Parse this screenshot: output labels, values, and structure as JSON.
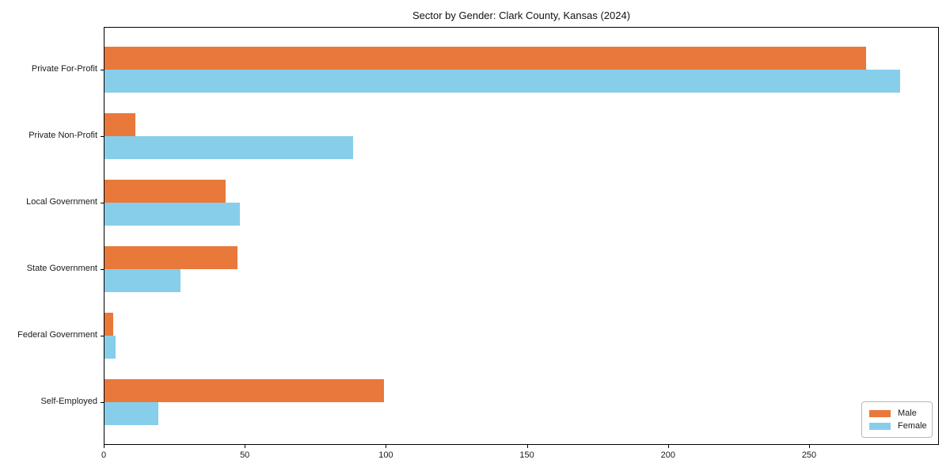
{
  "title": "Sector by Gender: Clark County, Kansas (2024)",
  "chart_data": {
    "type": "bar",
    "orientation": "horizontal",
    "title": "Sector by Gender: Clark County, Kansas (2024)",
    "xlabel": "",
    "ylabel": "",
    "categories": [
      "Private For-Profit",
      "Private Non-Profit",
      "Local Government",
      "State Government",
      "Federal Government",
      "Self-Employed"
    ],
    "series": [
      {
        "name": "Male",
        "color": "#e8793b",
        "values": [
          270,
          11,
          43,
          47,
          3,
          99
        ]
      },
      {
        "name": "Female",
        "color": "#87ceeb",
        "values": [
          282,
          88,
          48,
          27,
          4,
          19
        ]
      }
    ],
    "xlim": [
      0,
      296
    ],
    "x_ticks": [
      0,
      50,
      100,
      150,
      200,
      250
    ],
    "grid": false,
    "legend_position": "lower right"
  }
}
